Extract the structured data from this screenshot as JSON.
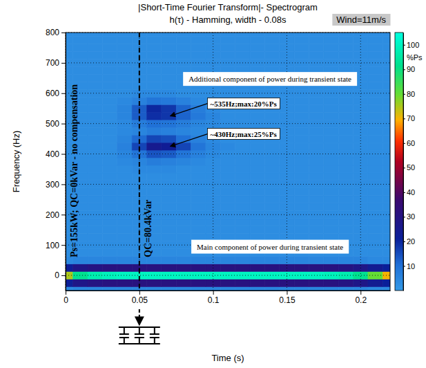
{
  "chart_data": {
    "type": "heatmap",
    "title": "|Short-Time Fourier Transform|- Spectrogram",
    "subtitle": "h(τ) - Hamming, width - 0.08s",
    "note": "Wind=11m/s",
    "x_label": "Time (s)",
    "y_label": "Frequency (Hz)",
    "xlim": [
      0,
      0.22
    ],
    "ylim": [
      -50,
      800
    ],
    "xticks": [
      0,
      0.05,
      0.1,
      0.15,
      0.2
    ],
    "yticks": [
      0,
      100,
      200,
      300,
      400,
      500,
      600,
      700,
      800
    ],
    "grid": true,
    "x": [
      0,
      0.01,
      0.02,
      0.03,
      0.04,
      0.05,
      0.06,
      0.07,
      0.08,
      0.09,
      0.1,
      0.11,
      0.12,
      0.13,
      0.14,
      0.15,
      0.16,
      0.17,
      0.18,
      0.19,
      0.2,
      0.21,
      0.22
    ],
    "y": [
      -50,
      -25,
      0,
      25,
      50,
      75,
      100,
      125,
      150,
      175,
      200,
      225,
      250,
      275,
      300,
      325,
      350,
      375,
      400,
      425,
      450,
      475,
      500,
      525,
      550,
      575,
      600,
      625,
      650,
      675,
      700,
      725,
      750,
      775,
      800
    ],
    "cells": [
      [
        4,
        5,
        5,
        5,
        5,
        5,
        5,
        5,
        5,
        5,
        5,
        5,
        5,
        5,
        5,
        5,
        5,
        5,
        5,
        5,
        5,
        4,
        4
      ],
      [
        22,
        28,
        30,
        31,
        31,
        31,
        31,
        31,
        31,
        31,
        31,
        31,
        31,
        31,
        31,
        31,
        31,
        31,
        31,
        30,
        28,
        24,
        21
      ],
      [
        75,
        92,
        97,
        99,
        100,
        100,
        100,
        100,
        100,
        100,
        100,
        100,
        100,
        100,
        100,
        100,
        100,
        100,
        99,
        97,
        92,
        80,
        70
      ],
      [
        22,
        28,
        30,
        31,
        31,
        31,
        31,
        31,
        31,
        31,
        31,
        31,
        31,
        31,
        31,
        31,
        31,
        31,
        31,
        30,
        28,
        24,
        21
      ],
      [
        4,
        5,
        5,
        5,
        5,
        5,
        5,
        5,
        5,
        5,
        5,
        5,
        5,
        5,
        5,
        5,
        5,
        5,
        5,
        5,
        5,
        4,
        4
      ],
      [
        3,
        3,
        3,
        3,
        3,
        3,
        3,
        3,
        3,
        3,
        3,
        3,
        3,
        3,
        3,
        3,
        3,
        3,
        3,
        3,
        3,
        3,
        3
      ],
      [
        3,
        3,
        3,
        3,
        3,
        3,
        3,
        3,
        3,
        3,
        3,
        3,
        3,
        3,
        3,
        3,
        3,
        3,
        3,
        3,
        3,
        3,
        3
      ],
      [
        3,
        3,
        3,
        3,
        3,
        3,
        3,
        3,
        3,
        3,
        3,
        3,
        3,
        3,
        3,
        3,
        3,
        3,
        3,
        3,
        3,
        3,
        3
      ],
      [
        3,
        3,
        3,
        3,
        3,
        3,
        3,
        3,
        3,
        3,
        3,
        3,
        3,
        3,
        3,
        3,
        3,
        3,
        3,
        3,
        3,
        3,
        3
      ],
      [
        3,
        3,
        3,
        3,
        3,
        3,
        3,
        3,
        3,
        3,
        3,
        3,
        3,
        3,
        3,
        3,
        3,
        3,
        3,
        3,
        3,
        3,
        3
      ],
      [
        3,
        3,
        3,
        3,
        3,
        3,
        3,
        3,
        3,
        3,
        3,
        3,
        3,
        3,
        3,
        3,
        3,
        3,
        3,
        3,
        3,
        3,
        3
      ],
      [
        3,
        3,
        3,
        3,
        3,
        3,
        3,
        3,
        3,
        3,
        3,
        3,
        3,
        3,
        3,
        3,
        3,
        3,
        3,
        3,
        3,
        3,
        3
      ],
      [
        3,
        3,
        3,
        3,
        3,
        3,
        3,
        3,
        3,
        3,
        3,
        3,
        3,
        3,
        3,
        3,
        3,
        3,
        3,
        3,
        3,
        3,
        3
      ],
      [
        3,
        3,
        3,
        3,
        3,
        3,
        3,
        3,
        3,
        3,
        3,
        3,
        3,
        3,
        3,
        3,
        3,
        3,
        3,
        3,
        3,
        3,
        3
      ],
      [
        3,
        3,
        3,
        3,
        3,
        3,
        3,
        3,
        3,
        3,
        3,
        3,
        3,
        3,
        3,
        3,
        3,
        3,
        3,
        3,
        3,
        3,
        3
      ],
      [
        3,
        3,
        3,
        3,
        3,
        3,
        3,
        3,
        3,
        3,
        3,
        3,
        3,
        3,
        3,
        3,
        3,
        3,
        3,
        3,
        3,
        3,
        3
      ],
      [
        3,
        3,
        3,
        3,
        3,
        4,
        4,
        4,
        3,
        3,
        3,
        3,
        3,
        3,
        3,
        3,
        3,
        3,
        3,
        3,
        3,
        3,
        3
      ],
      [
        3,
        3,
        3,
        3,
        4,
        5,
        7,
        6,
        5,
        4,
        3,
        3,
        3,
        3,
        3,
        3,
        3,
        3,
        3,
        3,
        3,
        3,
        3
      ],
      [
        3,
        3,
        3,
        3,
        5,
        9,
        14,
        13,
        9,
        6,
        4,
        3,
        3,
        3,
        3,
        3,
        3,
        3,
        3,
        3,
        3,
        3,
        3
      ],
      [
        3,
        3,
        3,
        3,
        6,
        16,
        25,
        23,
        16,
        9,
        5,
        4,
        3,
        3,
        3,
        3,
        3,
        3,
        3,
        3,
        3,
        3,
        3
      ],
      [
        3,
        3,
        3,
        3,
        5,
        11,
        16,
        15,
        10,
        6,
        4,
        3,
        3,
        3,
        3,
        3,
        3,
        3,
        3,
        3,
        3,
        3,
        3
      ],
      [
        3,
        3,
        3,
        3,
        4,
        5,
        7,
        6,
        5,
        4,
        3,
        3,
        3,
        3,
        3,
        3,
        3,
        3,
        3,
        3,
        3,
        3,
        3
      ],
      [
        3,
        3,
        3,
        3,
        4,
        7,
        10,
        9,
        7,
        5,
        4,
        3,
        3,
        3,
        3,
        3,
        3,
        3,
        3,
        3,
        3,
        3,
        3
      ],
      [
        3,
        3,
        3,
        3,
        5,
        13,
        19,
        18,
        12,
        8,
        5,
        3,
        3,
        3,
        3,
        3,
        3,
        3,
        3,
        3,
        3,
        3,
        3
      ],
      [
        3,
        3,
        3,
        3,
        5,
        13,
        20,
        18,
        12,
        7,
        4,
        3,
        3,
        3,
        3,
        3,
        3,
        3,
        3,
        3,
        3,
        3,
        3
      ],
      [
        3,
        3,
        3,
        3,
        4,
        6,
        9,
        8,
        6,
        4,
        3,
        3,
        3,
        3,
        3,
        3,
        3,
        3,
        3,
        3,
        3,
        3,
        3
      ],
      [
        3,
        3,
        3,
        3,
        3,
        4,
        4,
        4,
        3,
        3,
        3,
        3,
        3,
        3,
        3,
        3,
        3,
        3,
        3,
        3,
        3,
        3,
        3
      ],
      [
        3,
        3,
        3,
        3,
        3,
        3,
        3,
        3,
        3,
        3,
        3,
        3,
        3,
        3,
        3,
        3,
        3,
        3,
        3,
        3,
        3,
        3,
        3
      ],
      [
        3,
        3,
        3,
        3,
        3,
        3,
        3,
        3,
        3,
        3,
        3,
        3,
        3,
        3,
        3,
        3,
        3,
        3,
        3,
        3,
        3,
        3,
        3
      ],
      [
        3,
        3,
        3,
        3,
        3,
        3,
        3,
        3,
        3,
        3,
        3,
        3,
        3,
        3,
        3,
        3,
        3,
        3,
        3,
        3,
        3,
        3,
        3
      ],
      [
        3,
        3,
        3,
        3,
        3,
        3,
        3,
        3,
        3,
        3,
        3,
        3,
        3,
        3,
        3,
        3,
        3,
        3,
        3,
        3,
        3,
        3,
        3
      ],
      [
        3,
        3,
        3,
        3,
        3,
        3,
        3,
        3,
        3,
        3,
        3,
        3,
        3,
        3,
        3,
        3,
        3,
        3,
        3,
        3,
        3,
        3,
        3
      ],
      [
        3,
        3,
        3,
        3,
        3,
        3,
        3,
        3,
        3,
        3,
        3,
        3,
        3,
        3,
        3,
        3,
        3,
        3,
        3,
        3,
        3,
        3,
        3
      ],
      [
        3,
        3,
        3,
        3,
        3,
        3,
        3,
        3,
        3,
        3,
        3,
        3,
        3,
        3,
        3,
        3,
        3,
        3,
        3,
        3,
        3,
        3,
        3
      ],
      [
        3,
        3,
        3,
        3,
        3,
        3,
        3,
        3,
        3,
        3,
        3,
        3,
        3,
        3,
        3,
        3,
        3,
        3,
        3,
        3,
        3,
        3,
        3
      ]
    ],
    "colorbar": {
      "label": "%Ps",
      "range": [
        0,
        105
      ],
      "ticks": [
        10,
        20,
        30,
        40,
        50,
        60,
        70,
        80,
        90,
        100
      ]
    },
    "event": {
      "x": 0.05,
      "before": "Ps=155kW; QC=0kVar - no compensation",
      "after": "QC=80.4kVar"
    },
    "annotations": [
      {
        "text": "Additional component of power during transient state"
      },
      {
        "text": "~535Hz;max:20%Ps",
        "point": [
          0.07,
          525
        ]
      },
      {
        "text": "~430Hz;max:25%Ps",
        "point": [
          0.07,
          425
        ]
      },
      {
        "text": "Main component of power during transient state"
      }
    ]
  }
}
